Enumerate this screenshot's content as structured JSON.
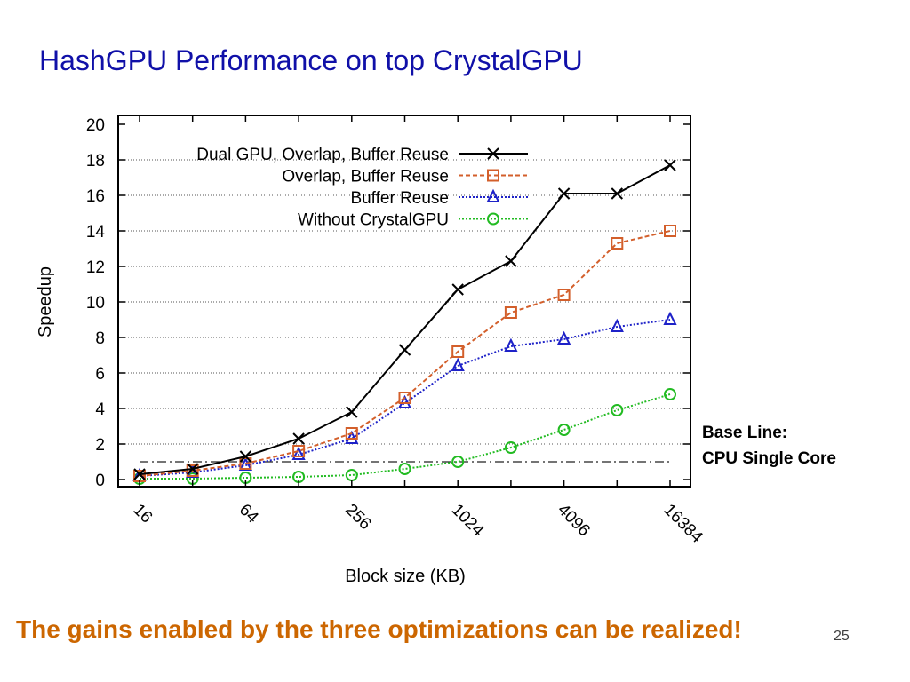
{
  "slide": {
    "title": "HashGPU Performance on top CrystalGPU",
    "baseline_note": [
      "Base Line:",
      "CPU Single Core"
    ],
    "footer": "The gains enabled by the three optimizations can be realized!",
    "page_number": "25"
  },
  "chart_data": {
    "type": "line",
    "xlabel": "Block size (KB)",
    "ylabel": "Speedup",
    "x_scale": "log2",
    "x": [
      16,
      32,
      64,
      128,
      256,
      512,
      1024,
      2048,
      4096,
      8192,
      16384
    ],
    "x_tick_labels": [
      "16",
      "64",
      "256",
      "1024",
      "4096",
      "16384"
    ],
    "x_tick_values": [
      16,
      64,
      256,
      1024,
      4096,
      16384
    ],
    "ylim": [
      0,
      20
    ],
    "y_ticks": [
      0,
      2,
      4,
      6,
      8,
      10,
      12,
      14,
      16,
      18,
      20
    ],
    "grid": "horizontal dotted",
    "legend_position": "top-left",
    "baseline": {
      "y": 1,
      "style": "dash-dot"
    },
    "series": [
      {
        "name": "Dual GPU, Overlap, Buffer Reuse",
        "color": "#000000",
        "marker": "x",
        "dash": "solid",
        "values": [
          0.3,
          0.6,
          1.3,
          2.3,
          3.8,
          7.3,
          10.7,
          12.3,
          16.1,
          16.1,
          17.7
        ]
      },
      {
        "name": "Overlap, Buffer Reuse",
        "color": "#d35f2b",
        "marker": "square",
        "dash": "dashed",
        "values": [
          0.2,
          0.5,
          0.9,
          1.6,
          2.6,
          4.6,
          7.2,
          9.4,
          10.4,
          13.3,
          14.0
        ]
      },
      {
        "name": "Buffer Reuse",
        "color": "#1e22c8",
        "marker": "triangle",
        "dash": "dotted",
        "values": [
          0.2,
          0.4,
          0.8,
          1.4,
          2.3,
          4.3,
          6.4,
          7.5,
          7.9,
          8.6,
          9.0
        ]
      },
      {
        "name": "Without CrystalGPU",
        "color": "#22bb22",
        "marker": "circle",
        "dash": "dotted",
        "values": [
          0.05,
          0.05,
          0.1,
          0.15,
          0.25,
          0.6,
          1.0,
          1.8,
          2.8,
          3.9,
          4.8
        ]
      }
    ]
  }
}
